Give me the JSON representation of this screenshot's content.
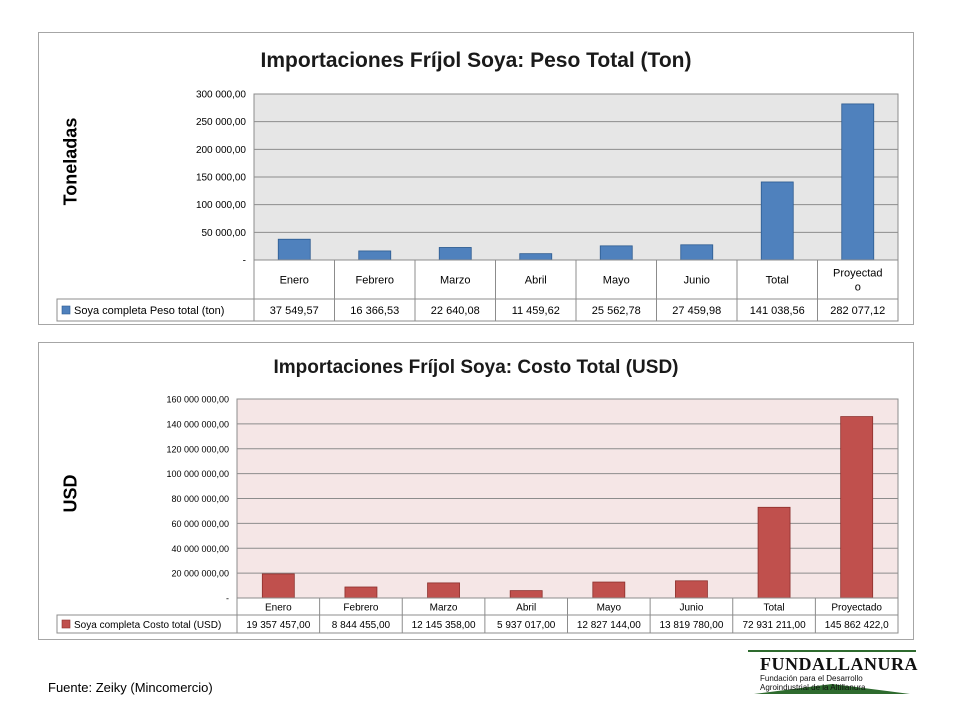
{
  "chart_data": [
    {
      "type": "bar",
      "title": "Importaciones Fríjol Soya: Peso Total (Ton)",
      "xlabel": "",
      "ylabel": "Toneladas",
      "categories": [
        "Enero",
        "Febrero",
        "Marzo",
        "Abril",
        "Mayo",
        "Junio",
        "Total",
        "Proyectado"
      ],
      "category_labels": [
        "Enero",
        "Febrero",
        "Marzo",
        "Abril",
        "Mayo",
        "Junio",
        "Total",
        "Proyectad o"
      ],
      "series": [
        {
          "name": "Soya completa Peso total (ton)",
          "values": [
            37549.57,
            16366.53,
            22640.08,
            11459.62,
            25562.78,
            27459.98,
            141038.56,
            282077.12
          ],
          "value_labels": [
            "37 549,57",
            "16 366,53",
            "22 640,08",
            "11 459,62",
            "25 562,78",
            "27 459,98",
            "141 038,56",
            "282 077,12"
          ],
          "color": "#4f81bd",
          "edge": "#2c5a8f"
        }
      ],
      "ylim": [
        0,
        300000
      ],
      "yticks": [
        0,
        50000,
        100000,
        150000,
        200000,
        250000,
        300000
      ],
      "ytick_labels": [
        "-",
        "50 000,00",
        "100 000,00",
        "150 000,00",
        "200 000,00",
        "250 000,00",
        "300 000,00"
      ],
      "grid": true,
      "legend": "data-table",
      "plot_bg": "#e6e6e6"
    },
    {
      "type": "bar",
      "title": "Importaciones Fríjol Soya: Costo Total (USD)",
      "xlabel": "",
      "ylabel": "USD",
      "categories": [
        "Enero",
        "Febrero",
        "Marzo",
        "Abril",
        "Mayo",
        "Junio",
        "Total",
        "Proyectado"
      ],
      "category_labels": [
        "Enero",
        "Febrero",
        "Marzo",
        "Abril",
        "Mayo",
        "Junio",
        "Total",
        "Proyectado"
      ],
      "series": [
        {
          "name": "Soya completa Costo total (USD)",
          "values": [
            19357457.0,
            8844455.0,
            12145358.0,
            5937017.0,
            12827144.0,
            13819780.0,
            72931211.0,
            145862422.0
          ],
          "value_labels": [
            "19 357 457,00",
            "8 844 455,00",
            "12 145 358,00",
            "5 937 017,00",
            "12 827 144,00",
            "13 819 780,00",
            "72 931 211,00",
            "145 862 422,0"
          ],
          "color": "#c0504d",
          "edge": "#8c2f2c"
        }
      ],
      "ylim": [
        0,
        160000000
      ],
      "yticks": [
        0,
        20000000,
        40000000,
        60000000,
        80000000,
        100000000,
        120000000,
        140000000,
        160000000
      ],
      "ytick_labels": [
        "-",
        "20 000 000,00",
        "40 000 000,00",
        "60 000 000,00",
        "80 000 000,00",
        "100 000 000,00",
        "120 000 000,00",
        "140 000 000,00",
        "160 000 000,00"
      ],
      "grid": true,
      "legend": "data-table",
      "plot_bg": "#f5e6e6"
    }
  ],
  "footer": {
    "source": "Fuente: Zeiky (Mincomercio)",
    "logo_name": "FUNDALLANURA",
    "logo_line1": "Fundación para el Desarrollo",
    "logo_line2": "Agroindustrial de la Altillanura"
  }
}
